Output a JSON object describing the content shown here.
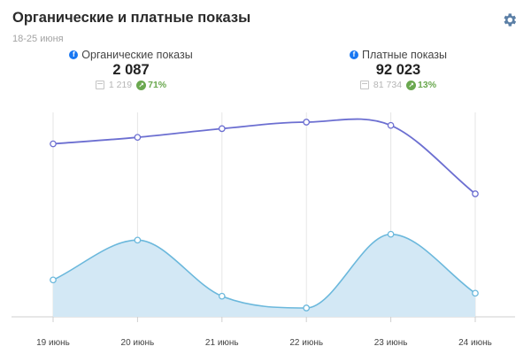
{
  "header": {
    "title": "Органические и платные показы",
    "subtitle": "18-25 июня"
  },
  "metrics": [
    {
      "label": "Органические показы",
      "value": "2 087",
      "previous": "1 219",
      "change": "71%",
      "icon": "facebook-icon"
    },
    {
      "label": "Платные показы",
      "value": "92 023",
      "previous": "81 734",
      "change": "13%",
      "icon": "facebook-icon"
    }
  ],
  "colors": {
    "line_series": "#6c6fd1",
    "area_series": "#6bb8dc",
    "area_fill": "#d3e8f5",
    "positive": "#6aa84f",
    "gear": "#5b7fa6"
  },
  "chart_data": {
    "type": "line",
    "categories": [
      "19 июнь",
      "20 июнь",
      "21 июнь",
      "22 июнь",
      "23 июнь",
      "24 июнь"
    ],
    "series": [
      {
        "style": "line",
        "values": [
          16200,
          16800,
          17600,
          18200,
          17900,
          11600
        ]
      },
      {
        "style": "area",
        "values": [
          250,
          520,
          140,
          60,
          560,
          160
        ]
      }
    ],
    "grid": "vertical",
    "legend": "none"
  }
}
